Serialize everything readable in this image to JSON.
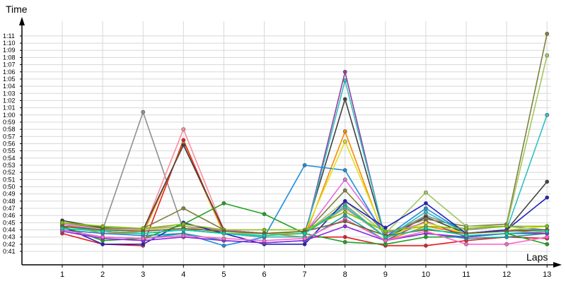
{
  "chart_data": {
    "type": "line",
    "title": "",
    "xlabel": "Laps",
    "ylabel": "Time",
    "x": [
      1,
      2,
      3,
      4,
      5,
      6,
      7,
      8,
      9,
      10,
      11,
      12,
      13
    ],
    "ylim": [
      40.5,
      72
    ],
    "yticks": [
      41,
      42,
      43,
      44,
      45,
      46,
      47,
      48,
      49,
      50,
      51,
      52,
      53,
      54,
      55,
      56,
      57,
      58,
      59,
      60,
      61,
      62,
      63,
      64,
      65,
      66,
      67,
      68,
      69,
      70,
      71
    ],
    "ytick_labels": [
      "0:41",
      "0:42",
      "0:43",
      "0:44",
      "0:45",
      "0:46",
      "0:47",
      "0:48",
      "0:49",
      "0:50",
      "0:51",
      "0:52",
      "0:53",
      "0:54",
      "0:55",
      "0:56",
      "0:57",
      "0:58",
      "0:59",
      "1:00",
      "1:01",
      "1:02",
      "1:03",
      "1:04",
      "1:05",
      "1:06",
      "1:07",
      "1:08",
      "1:09",
      "1:10",
      "1:11"
    ],
    "grid": true,
    "legend": "none",
    "series": [
      {
        "color": "#909090",
        "values": [
          44.5,
          44.0,
          60.4,
          44.0,
          44.0,
          43.5,
          43.5,
          47.5,
          43.0,
          46.0,
          44.0,
          44.5,
          44.0
        ]
      },
      {
        "color": "#ff8c9a",
        "values": [
          44.0,
          43.5,
          43.8,
          58.0,
          44.0,
          43.5,
          43.5,
          47.0,
          43.0,
          45.0,
          43.5,
          44.0,
          43.5
        ]
      },
      {
        "color": "#e02020",
        "values": [
          43.5,
          42.0,
          41.8,
          56.5,
          43.5,
          43.0,
          43.0,
          43.0,
          41.8,
          41.8,
          42.5,
          43.0,
          42.8
        ]
      },
      {
        "color": "#ff8800",
        "values": [
          44.8,
          43.5,
          43.5,
          56.0,
          43.5,
          43.5,
          43.0,
          57.7,
          42.5,
          44.5,
          43.5,
          44.0,
          43.5
        ]
      },
      {
        "color": "#404040",
        "values": [
          45.3,
          44.3,
          44.0,
          55.8,
          44.0,
          43.5,
          43.5,
          62.2,
          42.8,
          45.8,
          43.5,
          44.0,
          50.7
        ]
      },
      {
        "color": "#808040",
        "values": [
          45.0,
          44.2,
          44.2,
          47.0,
          44.0,
          43.5,
          43.5,
          49.5,
          43.5,
          45.5,
          44.5,
          44.8,
          71.3
        ]
      },
      {
        "color": "#e070e0",
        "values": [
          44.8,
          44.0,
          44.2,
          44.5,
          44.0,
          43.5,
          43.5,
          51.0,
          43.5,
          45.0,
          43.5,
          44.0,
          44.0
        ]
      },
      {
        "color": "#9040a0",
        "values": [
          44.5,
          43.8,
          43.5,
          44.0,
          43.5,
          43.0,
          43.0,
          66.0,
          42.5,
          45.2,
          43.0,
          43.5,
          43.5
        ]
      },
      {
        "color": "#30c0c0",
        "values": [
          44.5,
          43.8,
          43.5,
          44.0,
          43.5,
          43.0,
          43.0,
          64.8,
          42.8,
          46.5,
          43.5,
          44.0,
          60.0
        ]
      },
      {
        "color": "#1e8cdc",
        "values": [
          44.0,
          43.5,
          43.2,
          43.5,
          41.8,
          43.0,
          53.0,
          52.3,
          43.0,
          47.0,
          43.5,
          44.0,
          44.0
        ]
      },
      {
        "color": "#e0e020",
        "values": [
          44.5,
          44.0,
          44.0,
          44.5,
          43.5,
          43.5,
          43.5,
          56.3,
          43.0,
          45.0,
          43.5,
          44.0,
          44.5
        ]
      },
      {
        "color": "#a0c860",
        "values": [
          44.5,
          44.0,
          44.0,
          44.5,
          43.5,
          43.5,
          43.5,
          48.0,
          43.5,
          49.2,
          44.5,
          44.5,
          68.3
        ]
      },
      {
        "color": "#2020c0",
        "values": [
          44.5,
          42.0,
          42.0,
          45.0,
          43.5,
          42.0,
          42.0,
          48.0,
          44.3,
          47.7,
          43.5,
          44.0,
          48.5
        ]
      },
      {
        "color": "#20a020",
        "values": [
          44.5,
          42.5,
          42.8,
          44.8,
          47.7,
          46.2,
          43.5,
          42.3,
          42.0,
          43.0,
          43.0,
          43.5,
          42.0
        ]
      },
      {
        "color": "#10a0a0",
        "values": [
          44.0,
          43.0,
          42.8,
          43.5,
          42.5,
          42.2,
          42.5,
          46.0,
          42.5,
          43.5,
          42.8,
          43.0,
          43.5
        ]
      },
      {
        "color": "#8a2be2",
        "values": [
          43.8,
          42.8,
          42.5,
          43.0,
          42.5,
          42.2,
          42.5,
          44.5,
          42.5,
          43.5,
          43.0,
          43.5,
          43.5
        ]
      },
      {
        "color": "#ff66cc",
        "values": [
          44.0,
          43.0,
          42.8,
          43.2,
          42.8,
          42.5,
          42.8,
          45.5,
          42.5,
          43.8,
          42.0,
          42.0,
          43.0
        ]
      },
      {
        "color": "#80c000",
        "values": [
          45.0,
          44.5,
          44.2,
          44.8,
          44.0,
          44.0,
          44.0,
          46.5,
          43.8,
          44.5,
          44.2,
          44.5,
          44.5
        ]
      },
      {
        "color": "#7a5c2e",
        "values": [
          44.5,
          44.0,
          43.8,
          44.2,
          43.8,
          43.5,
          43.8,
          45.2,
          43.2,
          44.0,
          43.5,
          43.8,
          44.0
        ]
      },
      {
        "color": "#00d0a0",
        "values": [
          44.2,
          43.8,
          43.5,
          44.0,
          43.5,
          43.2,
          43.5,
          47.2,
          43.0,
          44.2,
          43.2,
          43.5,
          43.8
        ]
      }
    ]
  }
}
